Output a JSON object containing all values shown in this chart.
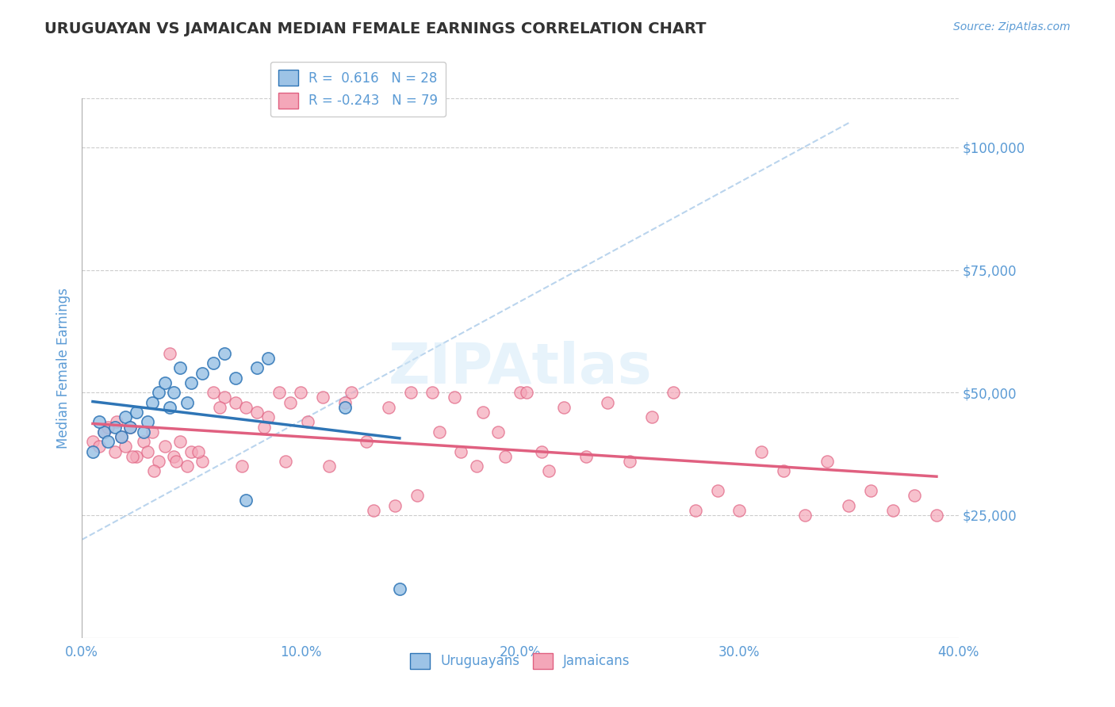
{
  "title": "URUGUAYAN VS JAMAICAN MEDIAN FEMALE EARNINGS CORRELATION CHART",
  "source_text": "Source: ZipAtlas.com",
  "xlabel": "",
  "ylabel": "Median Female Earnings",
  "xlim": [
    0.0,
    0.4
  ],
  "ylim": [
    0,
    110000
  ],
  "yticks": [
    25000,
    50000,
    75000,
    100000
  ],
  "ytick_labels": [
    "$25,000",
    "$50,000",
    "$75,000",
    "$100,000"
  ],
  "xticks": [
    0.0,
    0.1,
    0.2,
    0.3,
    0.4
  ],
  "xtick_labels": [
    "0.0%",
    "10.0%",
    "20.0%",
    "30.0%",
    "40.0%"
  ],
  "background_color": "#ffffff",
  "grid_color": "#cccccc",
  "title_color": "#333333",
  "axis_color": "#5b9bd5",
  "watermark_text": "ZIPAtlas",
  "legend_r1": "R =  0.616",
  "legend_n1": "N = 28",
  "legend_r2": "R = -0.243",
  "legend_n2": "N = 79",
  "uruguayan_color": "#9dc3e6",
  "jamaican_color": "#f4a7b9",
  "uruguayan_line_color": "#2e75b6",
  "jamaican_line_color": "#e06080",
  "ref_line_color": "#9dc3e6",
  "uruguayan_x": [
    0.01,
    0.005,
    0.008,
    0.012,
    0.015,
    0.018,
    0.02,
    0.022,
    0.025,
    0.028,
    0.03,
    0.032,
    0.035,
    0.038,
    0.04,
    0.042,
    0.045,
    0.048,
    0.05,
    0.055,
    0.06,
    0.065,
    0.07,
    0.075,
    0.08,
    0.085,
    0.12,
    0.145
  ],
  "uruguayan_y": [
    42000,
    38000,
    44000,
    40000,
    43000,
    41000,
    45000,
    43000,
    46000,
    42000,
    44000,
    48000,
    50000,
    52000,
    47000,
    50000,
    55000,
    48000,
    52000,
    54000,
    56000,
    58000,
    53000,
    28000,
    55000,
    57000,
    47000,
    10000
  ],
  "jamaican_x": [
    0.005,
    0.01,
    0.015,
    0.018,
    0.02,
    0.022,
    0.025,
    0.028,
    0.03,
    0.032,
    0.035,
    0.038,
    0.04,
    0.042,
    0.045,
    0.048,
    0.05,
    0.055,
    0.06,
    0.065,
    0.07,
    0.075,
    0.08,
    0.085,
    0.09,
    0.095,
    0.1,
    0.11,
    0.12,
    0.13,
    0.14,
    0.15,
    0.16,
    0.17,
    0.18,
    0.19,
    0.2,
    0.21,
    0.22,
    0.23,
    0.24,
    0.25,
    0.26,
    0.27,
    0.28,
    0.29,
    0.3,
    0.31,
    0.32,
    0.33,
    0.34,
    0.35,
    0.36,
    0.37,
    0.38,
    0.39,
    0.012,
    0.008,
    0.016,
    0.023,
    0.033,
    0.043,
    0.053,
    0.063,
    0.073,
    0.083,
    0.093,
    0.103,
    0.113,
    0.123,
    0.133,
    0.143,
    0.153,
    0.163,
    0.173,
    0.183,
    0.193,
    0.203,
    0.213
  ],
  "jamaican_y": [
    40000,
    42000,
    38000,
    41000,
    39000,
    43000,
    37000,
    40000,
    38000,
    42000,
    36000,
    39000,
    58000,
    37000,
    40000,
    35000,
    38000,
    36000,
    50000,
    49000,
    48000,
    47000,
    46000,
    45000,
    50000,
    48000,
    50000,
    49000,
    48000,
    40000,
    47000,
    50000,
    50000,
    49000,
    35000,
    42000,
    50000,
    38000,
    47000,
    37000,
    48000,
    36000,
    45000,
    50000,
    26000,
    30000,
    26000,
    38000,
    34000,
    25000,
    36000,
    27000,
    30000,
    26000,
    29000,
    25000,
    43000,
    39000,
    44000,
    37000,
    34000,
    36000,
    38000,
    47000,
    35000,
    43000,
    36000,
    44000,
    35000,
    50000,
    26000,
    27000,
    29000,
    42000,
    38000,
    46000,
    37000,
    50000,
    34000
  ]
}
